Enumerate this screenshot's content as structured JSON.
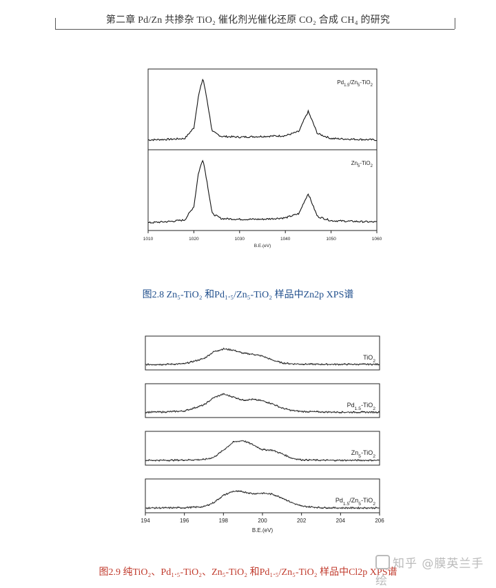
{
  "header": {
    "text": "第二章  Pd/Zn 共掺杂 TiO₂ 催化剂光催化还原 CO₂ 合成 CH₄ 的研究"
  },
  "figure1": {
    "caption": "图2.8 Zn₅-TiO₂ 和Pd₁.₅/Zn₅-TiO₂ 样品中Zn2p XPS谱",
    "xlabel": "B.E.(eV)",
    "xticks": [
      "1010",
      "1020",
      "1030",
      "1040",
      "1050",
      "1060"
    ],
    "panels": [
      {
        "label": "Pd1.5/Zn5-TiO2",
        "label_parts": [
          "Pd",
          "1.5",
          "/Zn",
          "5",
          "-TiO",
          "2"
        ]
      },
      {
        "label": "Zn5-TiO2",
        "label_parts": [
          "Zn",
          "5",
          "-TiO",
          "2"
        ]
      }
    ]
  },
  "figure2": {
    "caption": "图2.9  纯TiO₂、Pd₁.₅-TiO₂、Zn₅-TiO₂ 和Pd₁.₅/Zn₅-TiO₂ 样品中Cl2p XPS谱",
    "xlabel": "B.E.(eV)",
    "xticks": [
      "194",
      "196",
      "198",
      "200",
      "202",
      "204",
      "206"
    ],
    "panels": [
      {
        "label": "TiO2",
        "label_parts": [
          "TiO",
          "2"
        ]
      },
      {
        "label": "Pd1.5-TiO2",
        "label_parts": [
          "Pd",
          "1.5",
          "-TiO",
          "2"
        ]
      },
      {
        "label": "Zn5-TiO2",
        "label_parts": [
          "Zn",
          "5",
          "-TiO",
          "2"
        ]
      },
      {
        "label": "Pd1.5/Zn5-TiO2",
        "label_parts": [
          "Pd",
          "1.5",
          "/Zn",
          "5",
          "-TiO",
          "2"
        ]
      }
    ]
  },
  "watermark": {
    "text": "知乎 @膜英兰手绘"
  },
  "chart_data": [
    {
      "type": "line",
      "title": "",
      "xlabel": "B.E.(eV)",
      "ylabel": "",
      "xlim": [
        1010,
        1060
      ],
      "x": [
        1010,
        1015,
        1018,
        1020,
        1021,
        1022,
        1023,
        1024,
        1026,
        1030,
        1035,
        1040,
        1043,
        1044,
        1045,
        1046,
        1047,
        1050,
        1055,
        1060
      ],
      "series": [
        {
          "name": "Pd1.5/Zn5-TiO2",
          "values": [
            0.08,
            0.09,
            0.1,
            0.25,
            0.7,
            0.95,
            0.6,
            0.2,
            0.13,
            0.12,
            0.13,
            0.14,
            0.2,
            0.35,
            0.48,
            0.33,
            0.17,
            0.1,
            0.09,
            0.08
          ]
        },
        {
          "name": "Zn5-TiO2",
          "values": [
            0.05,
            0.07,
            0.09,
            0.28,
            0.75,
            0.95,
            0.58,
            0.18,
            0.11,
            0.1,
            0.1,
            0.12,
            0.18,
            0.33,
            0.46,
            0.3,
            0.14,
            0.08,
            0.07,
            0.06
          ]
        }
      ]
    },
    {
      "type": "line",
      "title": "",
      "xlabel": "B.E.(eV)",
      "ylabel": "",
      "xlim": [
        194,
        206
      ],
      "x": [
        194,
        195,
        196,
        197,
        197.5,
        198,
        198.5,
        199,
        199.5,
        200,
        200.5,
        201,
        201.5,
        202,
        203,
        204,
        205,
        206
      ],
      "series": [
        {
          "name": "TiO2",
          "values": [
            0.05,
            0.06,
            0.08,
            0.3,
            0.58,
            0.7,
            0.65,
            0.52,
            0.48,
            0.4,
            0.24,
            0.12,
            0.08,
            0.07,
            0.06,
            0.06,
            0.06,
            0.06
          ]
        },
        {
          "name": "Pd1.5-TiO2",
          "values": [
            0.05,
            0.06,
            0.1,
            0.35,
            0.65,
            0.8,
            0.68,
            0.55,
            0.58,
            0.52,
            0.4,
            0.22,
            0.12,
            0.08,
            0.06,
            0.05,
            0.05,
            0.05
          ]
        },
        {
          "name": "Zn5-TiO2",
          "values": [
            0.03,
            0.03,
            0.04,
            0.06,
            0.15,
            0.45,
            0.78,
            0.85,
            0.68,
            0.47,
            0.45,
            0.3,
            0.12,
            0.05,
            0.03,
            0.03,
            0.03,
            0.03
          ]
        },
        {
          "name": "Pd1.5/Zn5-TiO2",
          "values": [
            0.03,
            0.03,
            0.04,
            0.08,
            0.25,
            0.55,
            0.72,
            0.7,
            0.62,
            0.64,
            0.6,
            0.45,
            0.25,
            0.1,
            0.04,
            0.03,
            0.03,
            0.03
          ]
        }
      ]
    }
  ]
}
